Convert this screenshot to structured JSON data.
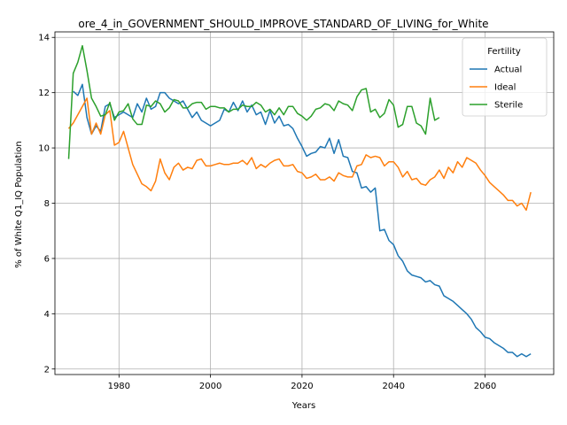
{
  "chart_data": {
    "type": "line",
    "title": "ore_4_in_GOVERNMENT_SHOULD_IMPROVE_STANDARD_OF_LIVING_for_White",
    "xlabel": "Years",
    "ylabel": "% of White Q1_IQ Population",
    "xlim": [
      1966,
      2075
    ],
    "ylim": [
      1.8,
      14.2
    ],
    "xticks": [
      1980,
      2000,
      2020,
      2040,
      2060
    ],
    "yticks": [
      2,
      4,
      6,
      8,
      10,
      12,
      14
    ],
    "grid": true,
    "legend": {
      "title": "Fertility",
      "placement": "top-right"
    },
    "series": [
      {
        "name": "Actual",
        "color": "#1f77b4",
        "points": [
          [
            1970,
            12.05
          ],
          [
            1971,
            11.9
          ],
          [
            1972,
            12.3
          ],
          [
            1973,
            11.1
          ],
          [
            1974,
            10.5
          ],
          [
            1975,
            10.8
          ],
          [
            1976,
            10.6
          ],
          [
            1977,
            11.5
          ],
          [
            1978,
            11.6
          ],
          [
            1979,
            11.1
          ],
          [
            1980,
            11.2
          ],
          [
            1981,
            11.3
          ],
          [
            1982,
            11.2
          ],
          [
            1983,
            11.1
          ],
          [
            1984,
            11.6
          ],
          [
            1985,
            11.3
          ],
          [
            1986,
            11.8
          ],
          [
            1987,
            11.4
          ],
          [
            1988,
            11.5
          ],
          [
            1989,
            12.0
          ],
          [
            1990,
            12.0
          ],
          [
            1991,
            11.8
          ],
          [
            1992,
            11.7
          ],
          [
            1993,
            11.6
          ],
          [
            1994,
            11.7
          ],
          [
            1995,
            11.4
          ],
          [
            1996,
            11.1
          ],
          [
            1997,
            11.3
          ],
          [
            1998,
            11.0
          ],
          [
            1999,
            10.9
          ],
          [
            2000,
            10.8
          ],
          [
            2001,
            10.9
          ],
          [
            2002,
            11.0
          ],
          [
            2003,
            11.4
          ],
          [
            2004,
            11.3
          ],
          [
            2005,
            11.65
          ],
          [
            2006,
            11.35
          ],
          [
            2007,
            11.7
          ],
          [
            2008,
            11.3
          ],
          [
            2009,
            11.55
          ],
          [
            2010,
            11.2
          ],
          [
            2011,
            11.3
          ],
          [
            2012,
            10.85
          ],
          [
            2013,
            11.35
          ],
          [
            2014,
            10.9
          ],
          [
            2015,
            11.15
          ],
          [
            2016,
            10.8
          ],
          [
            2017,
            10.85
          ],
          [
            2018,
            10.7
          ],
          [
            2019,
            10.35
          ],
          [
            2020,
            10.05
          ],
          [
            2021,
            9.7
          ],
          [
            2022,
            9.8
          ],
          [
            2023,
            9.85
          ],
          [
            2024,
            10.05
          ],
          [
            2025,
            10.0
          ],
          [
            2026,
            10.35
          ],
          [
            2027,
            9.8
          ],
          [
            2028,
            10.3
          ],
          [
            2029,
            9.7
          ],
          [
            2030,
            9.65
          ],
          [
            2031,
            9.15
          ],
          [
            2032,
            9.1
          ],
          [
            2033,
            8.55
          ],
          [
            2034,
            8.6
          ],
          [
            2035,
            8.4
          ],
          [
            2036,
            8.55
          ],
          [
            2037,
            7.0
          ],
          [
            2038,
            7.05
          ],
          [
            2039,
            6.65
          ],
          [
            2040,
            6.5
          ],
          [
            2041,
            6.1
          ],
          [
            2042,
            5.9
          ],
          [
            2043,
            5.55
          ],
          [
            2044,
            5.4
          ],
          [
            2045,
            5.35
          ],
          [
            2046,
            5.3
          ],
          [
            2047,
            5.15
          ],
          [
            2048,
            5.2
          ],
          [
            2049,
            5.05
          ],
          [
            2050,
            5.0
          ],
          [
            2051,
            4.65
          ],
          [
            2052,
            4.55
          ],
          [
            2053,
            4.45
          ],
          [
            2054,
            4.3
          ],
          [
            2055,
            4.15
          ],
          [
            2056,
            4.0
          ],
          [
            2057,
            3.8
          ],
          [
            2058,
            3.5
          ],
          [
            2059,
            3.35
          ],
          [
            2060,
            3.15
          ],
          [
            2061,
            3.1
          ],
          [
            2062,
            2.95
          ],
          [
            2063,
            2.85
          ],
          [
            2064,
            2.75
          ],
          [
            2065,
            2.6
          ],
          [
            2066,
            2.6
          ],
          [
            2067,
            2.45
          ],
          [
            2068,
            2.55
          ],
          [
            2069,
            2.45
          ],
          [
            2070,
            2.55
          ]
        ]
      },
      {
        "name": "Ideal",
        "color": "#ff7f0e",
        "points": [
          [
            1969,
            10.7
          ],
          [
            1970,
            10.9
          ],
          [
            1971,
            11.2
          ],
          [
            1972,
            11.5
          ],
          [
            1973,
            11.8
          ],
          [
            1974,
            10.5
          ],
          [
            1975,
            10.9
          ],
          [
            1976,
            10.5
          ],
          [
            1977,
            11.2
          ],
          [
            1978,
            11.35
          ],
          [
            1979,
            10.1
          ],
          [
            1980,
            10.2
          ],
          [
            1981,
            10.6
          ],
          [
            1982,
            10.0
          ],
          [
            1983,
            9.4
          ],
          [
            1984,
            9.05
          ],
          [
            1985,
            8.7
          ],
          [
            1986,
            8.6
          ],
          [
            1987,
            8.45
          ],
          [
            1988,
            8.8
          ],
          [
            1989,
            9.6
          ],
          [
            1990,
            9.1
          ],
          [
            1991,
            8.85
          ],
          [
            1992,
            9.3
          ],
          [
            1993,
            9.45
          ],
          [
            1994,
            9.2
          ],
          [
            1995,
            9.3
          ],
          [
            1996,
            9.25
          ],
          [
            1997,
            9.55
          ],
          [
            1998,
            9.6
          ],
          [
            1999,
            9.35
          ],
          [
            2000,
            9.35
          ],
          [
            2001,
            9.4
          ],
          [
            2002,
            9.45
          ],
          [
            2003,
            9.4
          ],
          [
            2004,
            9.4
          ],
          [
            2005,
            9.45
          ],
          [
            2006,
            9.45
          ],
          [
            2007,
            9.55
          ],
          [
            2008,
            9.4
          ],
          [
            2009,
            9.65
          ],
          [
            2010,
            9.25
          ],
          [
            2011,
            9.4
          ],
          [
            2012,
            9.3
          ],
          [
            2013,
            9.45
          ],
          [
            2014,
            9.55
          ],
          [
            2015,
            9.6
          ],
          [
            2016,
            9.35
          ],
          [
            2017,
            9.35
          ],
          [
            2018,
            9.4
          ],
          [
            2019,
            9.15
          ],
          [
            2020,
            9.1
          ],
          [
            2021,
            8.9
          ],
          [
            2022,
            8.95
          ],
          [
            2023,
            9.05
          ],
          [
            2024,
            8.85
          ],
          [
            2025,
            8.85
          ],
          [
            2026,
            8.95
          ],
          [
            2027,
            8.8
          ],
          [
            2028,
            9.1
          ],
          [
            2029,
            9.0
          ],
          [
            2030,
            8.95
          ],
          [
            2031,
            8.95
          ],
          [
            2032,
            9.35
          ],
          [
            2033,
            9.4
          ],
          [
            2034,
            9.75
          ],
          [
            2035,
            9.65
          ],
          [
            2036,
            9.7
          ],
          [
            2037,
            9.65
          ],
          [
            2038,
            9.35
          ],
          [
            2039,
            9.5
          ],
          [
            2040,
            9.5
          ],
          [
            2041,
            9.3
          ],
          [
            2042,
            8.95
          ],
          [
            2043,
            9.15
          ],
          [
            2044,
            8.85
          ],
          [
            2045,
            8.9
          ],
          [
            2046,
            8.7
          ],
          [
            2047,
            8.65
          ],
          [
            2048,
            8.85
          ],
          [
            2049,
            8.95
          ],
          [
            2050,
            9.2
          ],
          [
            2051,
            8.9
          ],
          [
            2052,
            9.3
          ],
          [
            2053,
            9.1
          ],
          [
            2054,
            9.5
          ],
          [
            2055,
            9.3
          ],
          [
            2056,
            9.65
          ],
          [
            2057,
            9.55
          ],
          [
            2058,
            9.45
          ],
          [
            2059,
            9.2
          ],
          [
            2060,
            9.0
          ],
          [
            2061,
            8.75
          ],
          [
            2062,
            8.6
          ],
          [
            2063,
            8.45
          ],
          [
            2064,
            8.3
          ],
          [
            2065,
            8.1
          ],
          [
            2066,
            8.1
          ],
          [
            2067,
            7.9
          ],
          [
            2068,
            8.0
          ],
          [
            2069,
            7.75
          ],
          [
            2070,
            8.4
          ]
        ]
      },
      {
        "name": "Sterile",
        "color": "#2ca02c",
        "points": [
          [
            1969,
            9.6
          ],
          [
            1970,
            12.7
          ],
          [
            1971,
            13.1
          ],
          [
            1972,
            13.7
          ],
          [
            1973,
            12.8
          ],
          [
            1974,
            11.8
          ],
          [
            1975,
            11.5
          ],
          [
            1976,
            11.15
          ],
          [
            1977,
            11.2
          ],
          [
            1978,
            11.65
          ],
          [
            1979,
            11.0
          ],
          [
            1980,
            11.3
          ],
          [
            1981,
            11.35
          ],
          [
            1982,
            11.6
          ],
          [
            1983,
            11.05
          ],
          [
            1984,
            10.85
          ],
          [
            1985,
            10.85
          ],
          [
            1986,
            11.55
          ],
          [
            1987,
            11.5
          ],
          [
            1988,
            11.7
          ],
          [
            1989,
            11.6
          ],
          [
            1990,
            11.3
          ],
          [
            1991,
            11.45
          ],
          [
            1992,
            11.75
          ],
          [
            1993,
            11.7
          ],
          [
            1994,
            11.45
          ],
          [
            1995,
            11.45
          ],
          [
            1996,
            11.6
          ],
          [
            1997,
            11.65
          ],
          [
            1998,
            11.65
          ],
          [
            1999,
            11.4
          ],
          [
            2000,
            11.5
          ],
          [
            2001,
            11.5
          ],
          [
            2002,
            11.45
          ],
          [
            2003,
            11.45
          ],
          [
            2004,
            11.3
          ],
          [
            2005,
            11.4
          ],
          [
            2006,
            11.4
          ],
          [
            2007,
            11.55
          ],
          [
            2008,
            11.5
          ],
          [
            2009,
            11.5
          ],
          [
            2010,
            11.65
          ],
          [
            2011,
            11.55
          ],
          [
            2012,
            11.3
          ],
          [
            2013,
            11.4
          ],
          [
            2014,
            11.2
          ],
          [
            2015,
            11.45
          ],
          [
            2016,
            11.2
          ],
          [
            2017,
            11.5
          ],
          [
            2018,
            11.5
          ],
          [
            2019,
            11.25
          ],
          [
            2020,
            11.15
          ],
          [
            2021,
            11.0
          ],
          [
            2022,
            11.15
          ],
          [
            2023,
            11.4
          ],
          [
            2024,
            11.45
          ],
          [
            2025,
            11.6
          ],
          [
            2026,
            11.55
          ],
          [
            2027,
            11.35
          ],
          [
            2028,
            11.7
          ],
          [
            2029,
            11.6
          ],
          [
            2030,
            11.55
          ],
          [
            2031,
            11.35
          ],
          [
            2032,
            11.85
          ],
          [
            2033,
            12.1
          ],
          [
            2034,
            12.15
          ],
          [
            2035,
            11.3
          ],
          [
            2036,
            11.4
          ],
          [
            2037,
            11.1
          ],
          [
            2038,
            11.25
          ],
          [
            2039,
            11.75
          ],
          [
            2040,
            11.55
          ],
          [
            2041,
            10.75
          ],
          [
            2042,
            10.85
          ],
          [
            2043,
            11.5
          ],
          [
            2044,
            11.5
          ],
          [
            2045,
            10.9
          ],
          [
            2046,
            10.8
          ],
          [
            2047,
            10.5
          ],
          [
            2048,
            11.8
          ],
          [
            2049,
            11.0
          ],
          [
            2050,
            11.1
          ]
        ]
      }
    ]
  }
}
